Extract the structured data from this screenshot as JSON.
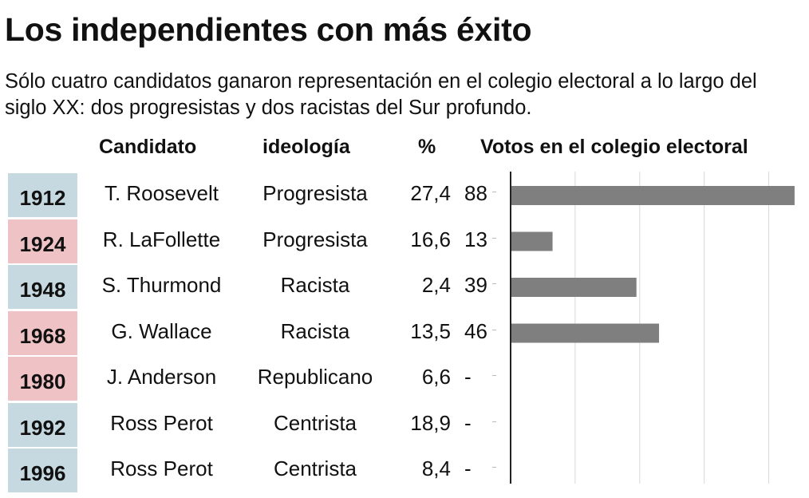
{
  "title": "Los independientes con más éxito",
  "subtitle": "Sólo cuatro candidatos ganaron representación en el colegio electoral a lo largo del siglo XX: dos progresistas y dos racistas del Sur profundo.",
  "headers": {
    "candidate": "Candidato",
    "ideology": "ideología",
    "pct": "%",
    "votes": "Votos en el colegio electoral"
  },
  "colors": {
    "blue_row": "#c6d9e1",
    "red_row": "#efc3c6",
    "bar": "#7f7f7f",
    "axis": "#222222",
    "grid": "#d8d8d8"
  },
  "rows": [
    {
      "year": "1912",
      "candidate": "T. Roosevelt",
      "ideology": "Progresista",
      "pct": "27,4",
      "votes_label": "88",
      "color": "blue"
    },
    {
      "year": "1924",
      "candidate": "R. LaFollette",
      "ideology": "Progresista",
      "pct": "16,6",
      "votes_label": "13",
      "color": "red"
    },
    {
      "year": "1948",
      "candidate": "S. Thurmond",
      "ideology": "Racista",
      "pct": "2,4",
      "votes_label": "39",
      "color": "blue"
    },
    {
      "year": "1968",
      "candidate": "G. Wallace",
      "ideology": "Racista",
      "pct": "13,5",
      "votes_label": "46",
      "color": "red"
    },
    {
      "year": "1980",
      "candidate": "J. Anderson",
      "ideology": "Republicano",
      "pct": "6,6",
      "votes_label": "-",
      "color": "red"
    },
    {
      "year": "1992",
      "candidate": "Ross Perot",
      "ideology": "Centrista",
      "pct": "18,9",
      "votes_label": "-",
      "color": "blue"
    },
    {
      "year": "1996",
      "candidate": "Ross Perot",
      "ideology": "Centrista",
      "pct": "8,4",
      "votes_label": "-",
      "color": "blue"
    }
  ],
  "chart_data": {
    "type": "bar",
    "orientation": "horizontal",
    "categories": [
      "1912",
      "1924",
      "1948",
      "1968",
      "1980",
      "1992",
      "1996"
    ],
    "values": [
      88,
      13,
      39,
      46,
      0,
      0,
      0
    ],
    "title": "Votos en el colegio electoral",
    "xlim": [
      0,
      90
    ],
    "grid": true
  }
}
